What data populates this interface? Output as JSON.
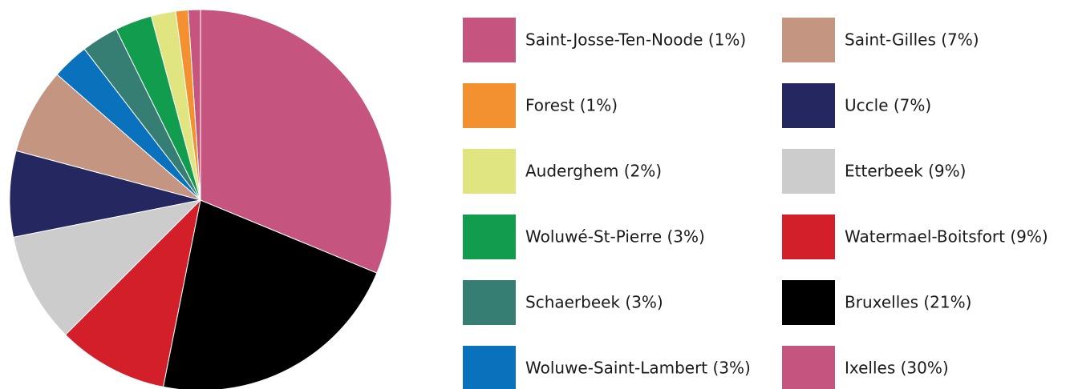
{
  "chart_data": {
    "type": "pie",
    "categories": [
      "Saint-Josse-Ten-Noode (1%)",
      "Forest (1%)",
      "Auderghem (2%)",
      "Woluwé-St-Pierre (3%)",
      "Schaerbeek (3%)",
      "Woluwe-Saint-Lambert (3%)",
      "Saint-Gilles (7%)",
      "Uccle (7%)",
      "Etterbeek (9%)",
      "Watermael-Boitsfort (9%)",
      "Bruxelles (21%)",
      "Ixelles (30%)"
    ],
    "values": [
      1,
      1,
      2,
      3,
      3,
      3,
      7,
      7,
      9,
      9,
      21,
      30
    ],
    "colors": [
      "#c5547f",
      "#f39130",
      "#e0e57f",
      "#129c4e",
      "#367d74",
      "#0a72bd",
      "#c49580",
      "#252761",
      "#cccccc",
      "#d21f29",
      "#000000",
      "#c5547f"
    ],
    "legend": "right"
  }
}
